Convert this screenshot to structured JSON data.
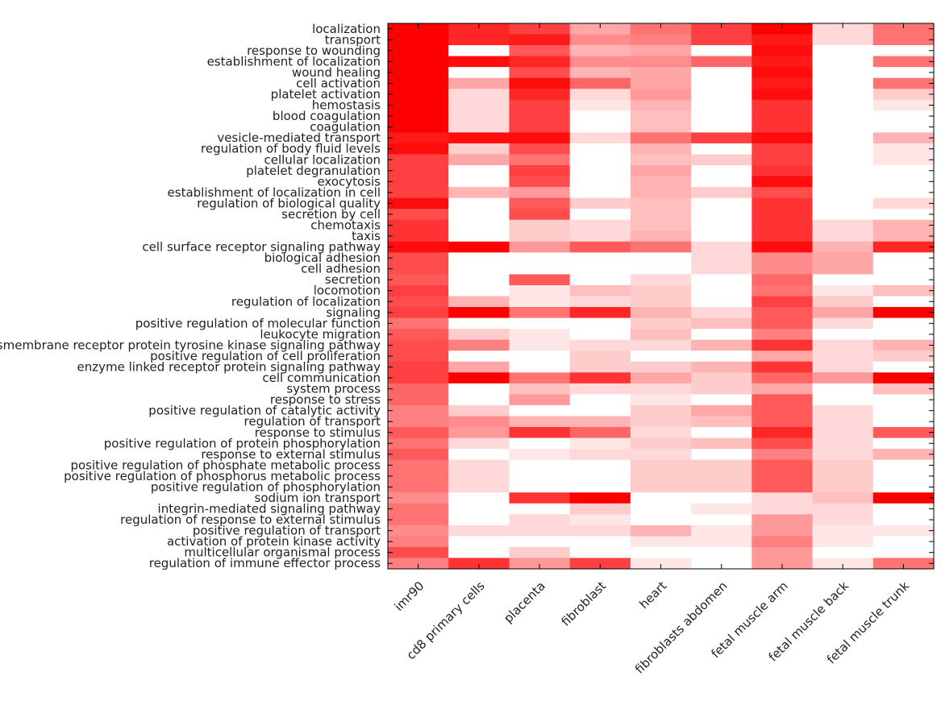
{
  "chart_data": {
    "type": "heatmap",
    "title": "",
    "xlabel": "",
    "ylabel": "",
    "grid": false,
    "legend": "none",
    "colormap": {
      "low": "#ffffff",
      "high": "#ff0000"
    },
    "value_range": [
      0,
      1
    ],
    "columns": [
      "imr90",
      "cd8 primary cells",
      "placenta",
      "fibroblast",
      "heart",
      "fibroblasts abdomen",
      "fetal muscle arm",
      "fetal muscle back",
      "fetal muscle trunk"
    ],
    "rows": [
      "localization",
      "transport",
      "response to wounding",
      "establishment of localization",
      "wound healing",
      "cell activation",
      "platelet activation",
      "hemostasis",
      "blood coagulation",
      "coagulation",
      "vesicle-mediated transport",
      "regulation of body fluid levels",
      "cellular localization",
      "platelet degranulation",
      "exocytosis",
      "establishment of localization in cell",
      "regulation of biological quality",
      "secretion by cell",
      "chemotaxis",
      "taxis",
      "cell surface receptor signaling pathway",
      "biological adhesion",
      "cell adhesion",
      "secretion",
      "locomotion",
      "regulation of localization",
      "signaling",
      "positive regulation of molecular function",
      "leukocyte migration",
      "transmembrane receptor protein tyrosine kinase signaling pathway",
      "positive regulation of cell proliferation",
      "enzyme linked receptor protein signaling pathway",
      "cell communication",
      "system process",
      "response to stress",
      "positive regulation of catalytic activity",
      "regulation of transport",
      "response to stimulus",
      "positive regulation of protein phosphorylation",
      "response to external stimulus",
      "positive regulation of phosphate metabolic process",
      "positive regulation of phosphorus metabolic process",
      "positive regulation of phosphorylation",
      "sodium ion transport",
      "integrin-mediated signaling pathway",
      "regulation of response to external stimulus",
      "positive regulation of transport",
      "activation of protein kinase activity",
      "multicellular organismal process",
      "regulation of immune effector process"
    ],
    "values": [
      [
        1.0,
        0.85,
        0.75,
        0.35,
        0.55,
        0.75,
        1.0,
        0.15,
        0.55
      ],
      [
        1.0,
        0.85,
        0.9,
        0.45,
        0.5,
        0.75,
        0.9,
        0.15,
        0.55
      ],
      [
        1.0,
        0.0,
        0.65,
        0.3,
        0.35,
        0.0,
        0.95,
        0.0,
        0.0
      ],
      [
        1.0,
        0.95,
        0.85,
        0.45,
        0.45,
        0.6,
        0.9,
        0.0,
        0.55
      ],
      [
        1.0,
        0.0,
        0.7,
        0.3,
        0.35,
        0.0,
        0.95,
        0.0,
        0.0
      ],
      [
        1.0,
        0.35,
        0.95,
        0.6,
        0.35,
        0.0,
        0.9,
        0.0,
        0.55
      ],
      [
        1.0,
        0.15,
        0.85,
        0.15,
        0.4,
        0.0,
        0.95,
        0.0,
        0.2
      ],
      [
        1.0,
        0.15,
        0.75,
        0.1,
        0.3,
        0.0,
        0.8,
        0.0,
        0.1
      ],
      [
        1.0,
        0.15,
        0.75,
        0.0,
        0.25,
        0.0,
        0.8,
        0.0,
        0.0
      ],
      [
        1.0,
        0.15,
        0.75,
        0.0,
        0.25,
        0.0,
        0.8,
        0.0,
        0.0
      ],
      [
        0.9,
        0.95,
        0.95,
        0.15,
        0.55,
        0.75,
        0.95,
        0.0,
        0.3
      ],
      [
        0.95,
        0.2,
        0.7,
        0.0,
        0.3,
        0.0,
        0.75,
        0.0,
        0.1
      ],
      [
        0.75,
        0.35,
        0.55,
        0.0,
        0.25,
        0.2,
        0.75,
        0.0,
        0.1
      ],
      [
        0.75,
        0.0,
        0.75,
        0.0,
        0.35,
        0.0,
        0.8,
        0.0,
        0.0
      ],
      [
        0.75,
        0.0,
        0.7,
        0.0,
        0.3,
        0.0,
        0.95,
        0.0,
        0.0
      ],
      [
        0.75,
        0.3,
        0.4,
        0.0,
        0.3,
        0.2,
        0.7,
        0.0,
        0.0
      ],
      [
        0.95,
        0.0,
        0.65,
        0.2,
        0.25,
        0.0,
        0.8,
        0.0,
        0.15
      ],
      [
        0.7,
        0.0,
        0.7,
        0.0,
        0.25,
        0.0,
        0.8,
        0.0,
        0.0
      ],
      [
        0.8,
        0.0,
        0.2,
        0.15,
        0.25,
        0.0,
        0.8,
        0.15,
        0.3
      ],
      [
        0.8,
        0.0,
        0.2,
        0.15,
        0.3,
        0.0,
        0.8,
        0.15,
        0.3
      ],
      [
        0.95,
        1.0,
        0.4,
        0.65,
        0.55,
        0.15,
        0.95,
        0.3,
        0.85
      ],
      [
        0.7,
        0.0,
        0.0,
        0.0,
        0.0,
        0.15,
        0.45,
        0.35,
        0.0
      ],
      [
        0.7,
        0.0,
        0.0,
        0.0,
        0.0,
        0.15,
        0.45,
        0.35,
        0.0
      ],
      [
        0.65,
        0.0,
        0.65,
        0.0,
        0.15,
        0.0,
        0.6,
        0.0,
        0.0
      ],
      [
        0.75,
        0.0,
        0.1,
        0.25,
        0.2,
        0.0,
        0.55,
        0.1,
        0.25
      ],
      [
        0.7,
        0.3,
        0.1,
        0.15,
        0.2,
        0.0,
        0.75,
        0.2,
        0.0
      ],
      [
        0.75,
        1.0,
        0.55,
        0.85,
        0.3,
        0.15,
        0.65,
        0.35,
        1.0
      ],
      [
        0.55,
        0.0,
        0.0,
        0.0,
        0.2,
        0.25,
        0.65,
        0.15,
        0.0
      ],
      [
        0.65,
        0.2,
        0.1,
        0.0,
        0.25,
        0.0,
        0.5,
        0.0,
        0.0
      ],
      [
        0.7,
        0.5,
        0.1,
        0.15,
        0.15,
        0.3,
        0.8,
        0.15,
        0.3
      ],
      [
        0.7,
        0.0,
        0.0,
        0.2,
        0.0,
        0.0,
        0.35,
        0.15,
        0.2
      ],
      [
        0.75,
        0.35,
        0.0,
        0.2,
        0.2,
        0.3,
        0.8,
        0.15,
        0.0
      ],
      [
        0.75,
        1.0,
        0.55,
        0.8,
        0.35,
        0.2,
        0.6,
        0.4,
        1.0
      ],
      [
        0.6,
        0.0,
        0.25,
        0.15,
        0.15,
        0.2,
        0.35,
        0.0,
        0.25
      ],
      [
        0.6,
        0.0,
        0.4,
        0.0,
        0.1,
        0.0,
        0.65,
        0.0,
        0.0
      ],
      [
        0.5,
        0.2,
        0.0,
        0.0,
        0.2,
        0.35,
        0.65,
        0.15,
        0.0
      ],
      [
        0.5,
        0.45,
        0.3,
        0.3,
        0.2,
        0.25,
        0.65,
        0.15,
        0.0
      ],
      [
        0.65,
        0.4,
        0.8,
        0.6,
        0.15,
        0.0,
        0.85,
        0.15,
        0.65
      ],
      [
        0.55,
        0.15,
        0.0,
        0.1,
        0.2,
        0.25,
        0.7,
        0.15,
        0.0
      ],
      [
        0.65,
        0.0,
        0.1,
        0.15,
        0.15,
        0.0,
        0.5,
        0.15,
        0.3
      ],
      [
        0.55,
        0.15,
        0.0,
        0.0,
        0.2,
        0.2,
        0.65,
        0.2,
        0.0
      ],
      [
        0.55,
        0.15,
        0.0,
        0.0,
        0.2,
        0.2,
        0.65,
        0.2,
        0.0
      ],
      [
        0.55,
        0.15,
        0.0,
        0.0,
        0.2,
        0.2,
        0.65,
        0.2,
        0.0
      ],
      [
        0.45,
        0.0,
        0.8,
        1.0,
        0.0,
        0.0,
        0.15,
        0.25,
        1.0
      ],
      [
        0.55,
        0.0,
        0.0,
        0.2,
        0.0,
        0.1,
        0.15,
        0.15,
        0.0
      ],
      [
        0.55,
        0.0,
        0.15,
        0.1,
        0.0,
        0.0,
        0.4,
        0.15,
        0.0
      ],
      [
        0.45,
        0.15,
        0.15,
        0.15,
        0.3,
        0.1,
        0.4,
        0.1,
        0.1
      ],
      [
        0.5,
        0.0,
        0.0,
        0.0,
        0.1,
        0.1,
        0.5,
        0.1,
        0.0
      ],
      [
        0.7,
        0.0,
        0.2,
        0.0,
        0.0,
        0.0,
        0.4,
        0.0,
        0.0
      ],
      [
        0.5,
        0.8,
        0.4,
        0.75,
        0.1,
        0.0,
        0.4,
        0.1,
        0.55
      ]
    ]
  }
}
